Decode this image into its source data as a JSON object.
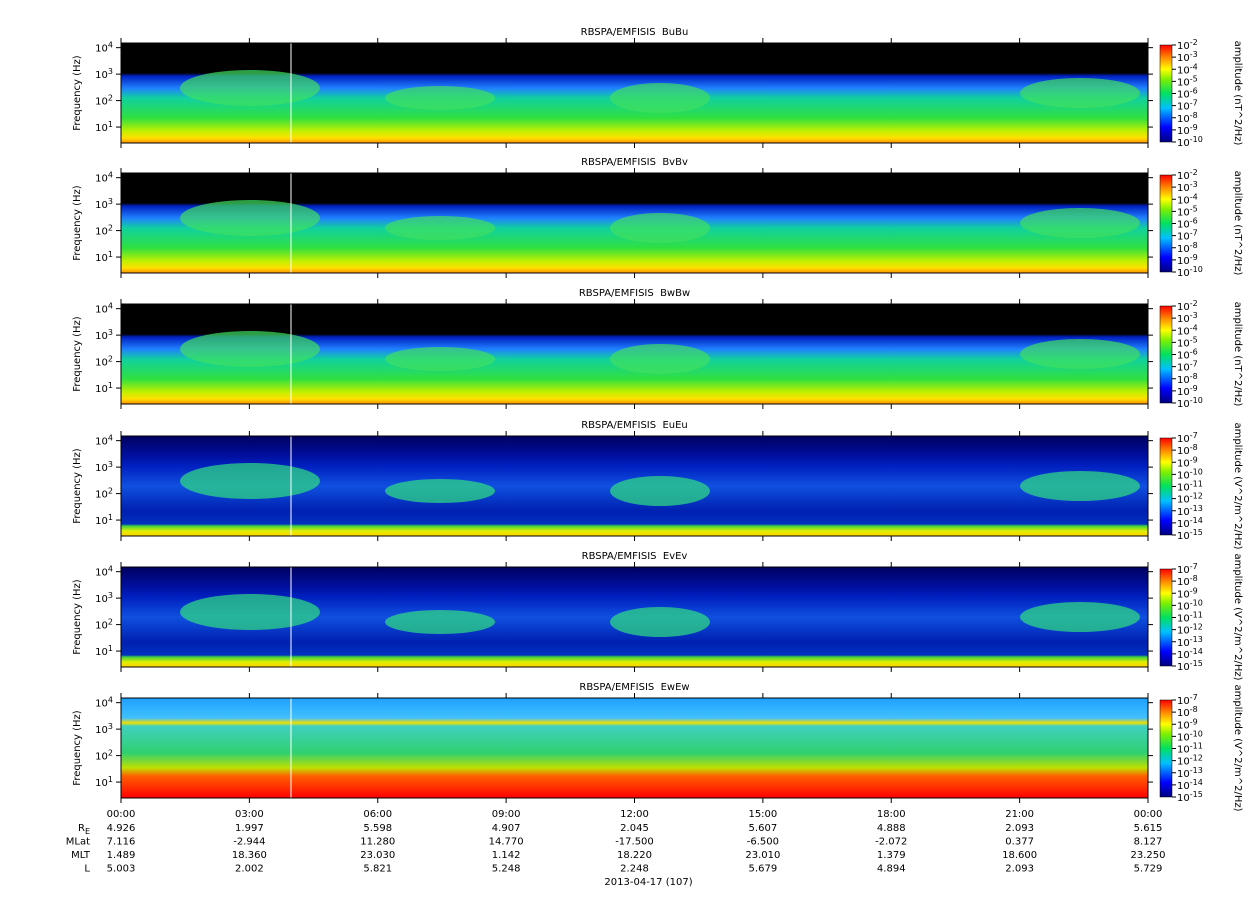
{
  "chart_data": [
    {
      "type": "spectrogram",
      "title": "RBSPA/EMFISIS  BuBu",
      "ylabel": "Frequency (Hz)",
      "ylim": [
        2.5,
        15000
      ],
      "yscale": "log",
      "yticks": [
        {
          "value": 10,
          "label": "10^1"
        },
        {
          "value": 100,
          "label": "10^2"
        },
        {
          "value": 1000,
          "label": "10^3"
        },
        {
          "value": 10000,
          "label": "10^4"
        }
      ],
      "style": "B",
      "colorbar": {
        "label": "amplitude (nT^2/Hz)",
        "zlim": [
          1e-10,
          0.01
        ],
        "zscale": "log",
        "zticks": [
          {
            "value": 0.01,
            "label": "10^-2"
          },
          {
            "value": 0.001,
            "label": "10^-3"
          },
          {
            "value": 0.0001,
            "label": "10^-4"
          },
          {
            "value": 1e-05,
            "label": "10^-5"
          },
          {
            "value": 1e-06,
            "label": "10^-6"
          },
          {
            "value": 1e-07,
            "label": "10^-7"
          },
          {
            "value": 1e-08,
            "label": "10^-8"
          },
          {
            "value": 1e-09,
            "label": "10^-9"
          },
          {
            "value": 1e-10,
            "label": "10^-10"
          }
        ]
      }
    },
    {
      "type": "spectrogram",
      "title": "RBSPA/EMFISIS  BvBv",
      "ylabel": "Frequency (Hz)",
      "ylim": [
        2.5,
        15000
      ],
      "yscale": "log",
      "yticks": [
        {
          "value": 10,
          "label": "10^1"
        },
        {
          "value": 100,
          "label": "10^2"
        },
        {
          "value": 1000,
          "label": "10^3"
        },
        {
          "value": 10000,
          "label": "10^4"
        }
      ],
      "style": "B",
      "colorbar": {
        "label": "amplitude (nT^2/Hz)",
        "zlim": [
          1e-10,
          0.01
        ],
        "zscale": "log",
        "zticks": [
          {
            "value": 0.01,
            "label": "10^-2"
          },
          {
            "value": 0.001,
            "label": "10^-3"
          },
          {
            "value": 0.0001,
            "label": "10^-4"
          },
          {
            "value": 1e-05,
            "label": "10^-5"
          },
          {
            "value": 1e-06,
            "label": "10^-6"
          },
          {
            "value": 1e-07,
            "label": "10^-7"
          },
          {
            "value": 1e-08,
            "label": "10^-8"
          },
          {
            "value": 1e-09,
            "label": "10^-9"
          },
          {
            "value": 1e-10,
            "label": "10^-10"
          }
        ]
      }
    },
    {
      "type": "spectrogram",
      "title": "RBSPA/EMFISIS  BwBw",
      "ylabel": "Frequency (Hz)",
      "ylim": [
        2.5,
        15000
      ],
      "yscale": "log",
      "yticks": [
        {
          "value": 10,
          "label": "10^1"
        },
        {
          "value": 100,
          "label": "10^2"
        },
        {
          "value": 1000,
          "label": "10^3"
        },
        {
          "value": 10000,
          "label": "10^4"
        }
      ],
      "style": "B",
      "colorbar": {
        "label": "amplitude (nT^2/Hz)",
        "zlim": [
          1e-10,
          0.01
        ],
        "zscale": "log",
        "zticks": [
          {
            "value": 0.01,
            "label": "10^-2"
          },
          {
            "value": 0.001,
            "label": "10^-3"
          },
          {
            "value": 0.0001,
            "label": "10^-4"
          },
          {
            "value": 1e-05,
            "label": "10^-5"
          },
          {
            "value": 1e-06,
            "label": "10^-6"
          },
          {
            "value": 1e-07,
            "label": "10^-7"
          },
          {
            "value": 1e-08,
            "label": "10^-8"
          },
          {
            "value": 1e-09,
            "label": "10^-9"
          },
          {
            "value": 1e-10,
            "label": "10^-10"
          }
        ]
      }
    },
    {
      "type": "spectrogram",
      "title": "RBSPA/EMFISIS  EuEu",
      "ylabel": "Frequency (Hz)",
      "ylim": [
        2.5,
        15000
      ],
      "yscale": "log",
      "yticks": [
        {
          "value": 10,
          "label": "10^1"
        },
        {
          "value": 100,
          "label": "10^2"
        },
        {
          "value": 1000,
          "label": "10^3"
        },
        {
          "value": 10000,
          "label": "10^4"
        }
      ],
      "style": "E",
      "colorbar": {
        "label": "amplitude (V^2/m^2/Hz)",
        "zlim": [
          1e-15,
          1e-07
        ],
        "zscale": "log",
        "zticks": [
          {
            "value": 1e-07,
            "label": "10^-7"
          },
          {
            "value": 1e-08,
            "label": "10^-8"
          },
          {
            "value": 1e-09,
            "label": "10^-9"
          },
          {
            "value": 1e-10,
            "label": "10^-10"
          },
          {
            "value": 1e-11,
            "label": "10^-11"
          },
          {
            "value": 1e-12,
            "label": "10^-12"
          },
          {
            "value": 1e-13,
            "label": "10^-13"
          },
          {
            "value": 1e-14,
            "label": "10^-14"
          },
          {
            "value": 1e-15,
            "label": "10^-15"
          }
        ]
      }
    },
    {
      "type": "spectrogram",
      "title": "RBSPA/EMFISIS  EvEv",
      "ylabel": "Frequency (Hz)",
      "ylim": [
        2.5,
        15000
      ],
      "yscale": "log",
      "yticks": [
        {
          "value": 10,
          "label": "10^1"
        },
        {
          "value": 100,
          "label": "10^2"
        },
        {
          "value": 1000,
          "label": "10^3"
        },
        {
          "value": 10000,
          "label": "10^4"
        }
      ],
      "style": "E",
      "colorbar": {
        "label": "amplitude (V^2/m^2/Hz)",
        "zlim": [
          1e-15,
          1e-07
        ],
        "zscale": "log",
        "zticks": [
          {
            "value": 1e-07,
            "label": "10^-7"
          },
          {
            "value": 1e-08,
            "label": "10^-8"
          },
          {
            "value": 1e-09,
            "label": "10^-9"
          },
          {
            "value": 1e-10,
            "label": "10^-10"
          },
          {
            "value": 1e-11,
            "label": "10^-11"
          },
          {
            "value": 1e-12,
            "label": "10^-12"
          },
          {
            "value": 1e-13,
            "label": "10^-13"
          },
          {
            "value": 1e-14,
            "label": "10^-14"
          },
          {
            "value": 1e-15,
            "label": "10^-15"
          }
        ]
      }
    },
    {
      "type": "spectrogram",
      "title": "RBSPA/EMFISIS  EwEw",
      "ylabel": "Frequency (Hz)",
      "ylim": [
        2.5,
        15000
      ],
      "yscale": "log",
      "yticks": [
        {
          "value": 10,
          "label": "10^1"
        },
        {
          "value": 100,
          "label": "10^2"
        },
        {
          "value": 1000,
          "label": "10^3"
        },
        {
          "value": 10000,
          "label": "10^4"
        }
      ],
      "style": "Ew",
      "colorbar": {
        "label": "amplitude (V^2/m^2/Hz)",
        "zlim": [
          1e-15,
          1e-07
        ],
        "zscale": "log",
        "zticks": [
          {
            "value": 1e-07,
            "label": "10^-7"
          },
          {
            "value": 1e-08,
            "label": "10^-8"
          },
          {
            "value": 1e-09,
            "label": "10^-9"
          },
          {
            "value": 1e-10,
            "label": "10^-10"
          },
          {
            "value": 1e-11,
            "label": "10^-11"
          },
          {
            "value": 1e-12,
            "label": "10^-12"
          },
          {
            "value": 1e-13,
            "label": "10^-13"
          },
          {
            "value": 1e-14,
            "label": "10^-14"
          },
          {
            "value": 1e-15,
            "label": "10^-15"
          }
        ]
      }
    }
  ],
  "xaxis": {
    "xlim": [
      0,
      24
    ],
    "xticks": [
      {
        "value": 0,
        "label": "00:00"
      },
      {
        "value": 3,
        "label": "03:00"
      },
      {
        "value": 6,
        "label": "06:00"
      },
      {
        "value": 9,
        "label": "09:00"
      },
      {
        "value": 12,
        "label": "12:00"
      },
      {
        "value": 15,
        "label": "15:00"
      },
      {
        "value": 18,
        "label": "18:00"
      },
      {
        "value": 21,
        "label": "21:00"
      },
      {
        "value": 24,
        "label": "00:00"
      }
    ]
  },
  "ephemeris": {
    "date": "2013-04-17 (107)",
    "rows": [
      {
        "label": "R_E",
        "values": [
          "4.926",
          "1.997",
          "5.598",
          "4.907",
          "2.045",
          "5.607",
          "4.888",
          "2.093",
          "5.615"
        ]
      },
      {
        "label": "MLat",
        "values": [
          "7.116",
          "-2.944",
          "11.280",
          "14.770",
          "-17.500",
          "-6.500",
          "-2.072",
          "0.377",
          "8.127"
        ]
      },
      {
        "label": "MLT",
        "values": [
          "1.489",
          "18.360",
          "23.030",
          "1.142",
          "18.220",
          "23.010",
          "1.379",
          "18.600",
          "23.250"
        ]
      },
      {
        "label": "L",
        "values": [
          "5.003",
          "2.002",
          "5.821",
          "5.248",
          "2.248",
          "5.679",
          "4.894",
          "2.093",
          "5.729"
        ]
      }
    ]
  }
}
